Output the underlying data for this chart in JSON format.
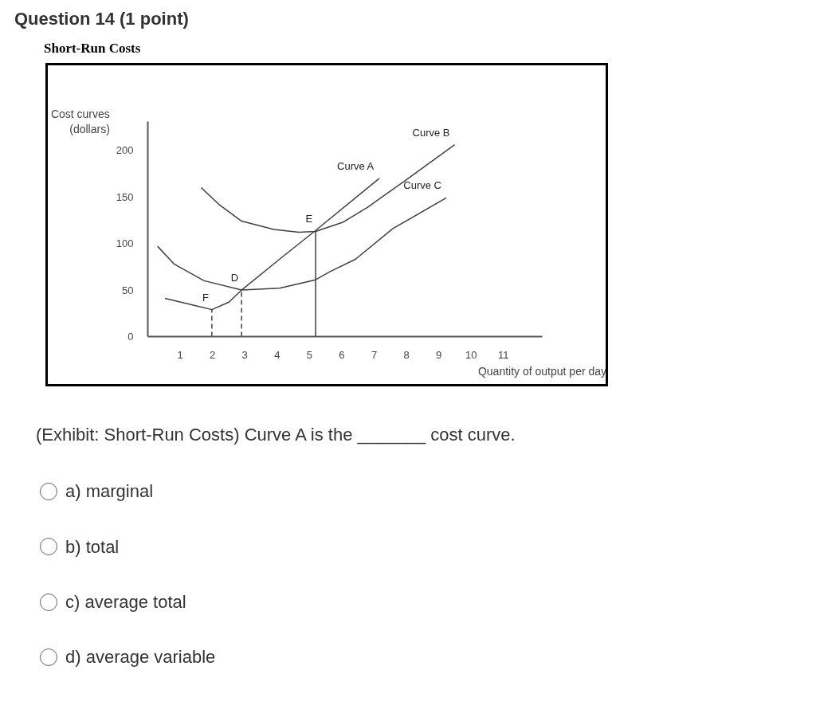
{
  "chart_data": {
    "type": "line",
    "title": "Short-Run Costs",
    "xlabel": "Quantity of output per day",
    "ylabel": "Cost curves\n(dollars)",
    "xlim": [
      0,
      12.2
    ],
    "ylim": [
      0,
      231
    ],
    "xticks": [
      1,
      2,
      3,
      4,
      5,
      6,
      7,
      8,
      9,
      10,
      11
    ],
    "yticks": [
      0,
      50,
      100,
      150,
      200
    ],
    "grid": false,
    "marker": "none",
    "series": [
      {
        "name": "Curve A",
        "color": "#404040",
        "x": [
          0.53,
          1.51,
          1.98,
          2.51,
          2.9,
          4.07,
          5.19,
          7.16
        ],
        "values": [
          41,
          33,
          29,
          37,
          50,
          83,
          114,
          170
        ]
      },
      {
        "name": "Curve B",
        "color": "#404040",
        "x": [
          1.65,
          2.2,
          2.9,
          3.9,
          4.67,
          5.19,
          6.05,
          6.8,
          7.98,
          9.49
        ],
        "values": [
          160,
          142,
          124,
          115,
          112,
          113,
          123,
          139,
          168,
          206
        ]
      },
      {
        "name": "Curve C",
        "color": "#404040",
        "x": [
          0.3,
          0.81,
          1.74,
          2.9,
          4.07,
          5.19,
          5.65,
          6.42,
          7.58,
          9.23
        ],
        "values": [
          97,
          78,
          60,
          50,
          52,
          61,
          70,
          83,
          116,
          149
        ]
      },
      {
        "color": "#404040",
        "x": [
          1.98,
          1.98
        ],
        "values": [
          0,
          29
        ],
        "line_style": "dashed"
      },
      {
        "color": "#404040",
        "x": [
          2.9,
          2.9
        ],
        "values": [
          0,
          50
        ],
        "line_style": "dashed"
      },
      {
        "color": "#404040",
        "x": [
          5.19,
          5.19
        ],
        "values": [
          0,
          113
        ],
        "line_style": "solid"
      }
    ],
    "annotations": [
      "Question 14 (1 point)",
      {
        "text": "E",
        "x": 5.19,
        "y": 113
      },
      {
        "text": "D",
        "x": 2.9,
        "y": 50
      },
      {
        "text": "F",
        "x": 1.98,
        "y": 29
      },
      "(Exhibit: Short-Run Costs) Curve A is the _______ cost curve.",
      "a) marginal",
      "b) total",
      "c) average total",
      "d) average variable"
    ]
  }
}
